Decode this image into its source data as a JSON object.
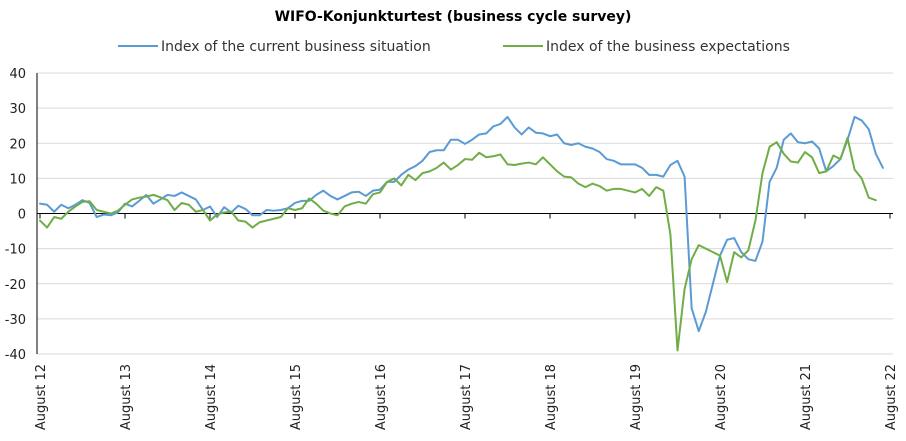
{
  "chart_data": {
    "type": "line",
    "title": "WIFO-Konjunkturtest (business cycle survey)",
    "xlabel": "",
    "ylabel": "",
    "ylim": [
      -40,
      40
    ],
    "yticks": [
      -40,
      -30,
      -20,
      -10,
      0,
      10,
      20,
      30,
      40
    ],
    "legend_position": "top",
    "grid": true,
    "x_tick_labels": [
      "August 12",
      "August 13",
      "August 14",
      "August 15",
      "August 16",
      "August 17",
      "August 18",
      "August 19",
      "August 20",
      "August 21",
      "August 22"
    ],
    "x_start": "2012-08",
    "series": [
      {
        "name": "Index of the current business situation",
        "color": "#5b9bd5",
        "values": [
          2.8,
          2.5,
          0.5,
          2.5,
          1.5,
          2.5,
          3.8,
          3.0,
          -1.0,
          -0.3,
          -0.5,
          0.3,
          2.8,
          2.0,
          3.6,
          5.3,
          2.8,
          4.0,
          5.3,
          5.0,
          6.0,
          5.0,
          4.0,
          1.0,
          2.0,
          -1.0,
          1.8,
          0.3,
          2.2,
          1.3,
          -0.5,
          -0.5,
          1.0,
          0.8,
          1.0,
          1.5,
          3.0,
          3.6,
          3.6,
          5.3,
          6.5,
          5.0,
          4.0,
          5.0,
          6.0,
          6.2,
          5.0,
          6.5,
          6.8,
          9.0,
          9.0,
          11.0,
          12.5,
          13.5,
          15.0,
          17.5,
          18.0,
          18.0,
          21.0,
          21.0,
          19.8,
          21.0,
          22.5,
          22.8,
          24.8,
          25.5,
          27.5,
          24.5,
          22.5,
          24.5,
          23.0,
          22.8,
          22.0,
          22.5,
          20.0,
          19.5,
          20.0,
          19.0,
          18.5,
          17.5,
          15.5,
          15.0,
          14.0,
          14.0,
          14.0,
          13.0,
          11.0,
          11.0,
          10.5,
          13.8,
          15.0,
          10.5,
          -27.0,
          -33.5,
          -28.0,
          -20.0,
          -12.0,
          -7.5,
          -7.0,
          -11.0,
          -13.0,
          -13.5,
          -8.0,
          9.0,
          13.0,
          21.0,
          22.8,
          20.3,
          20.0,
          20.5,
          18.5,
          12.0,
          13.5,
          15.5,
          21.0,
          27.5,
          26.5,
          24.0,
          17.0,
          13.0
        ]
      },
      {
        "name": "Index of the business expectations",
        "color": "#70ad47",
        "values": [
          -2.0,
          -4.0,
          -1.0,
          -1.5,
          0.5,
          2.0,
          3.3,
          3.5,
          1.0,
          0.5,
          0.0,
          0.8,
          2.5,
          4.0,
          4.5,
          4.8,
          5.3,
          4.6,
          3.8,
          1.0,
          3.0,
          2.5,
          0.5,
          1.0,
          -2.0,
          -0.3,
          0.3,
          0.5,
          -2.0,
          -2.3,
          -4.0,
          -2.5,
          -2.0,
          -1.5,
          -1.0,
          1.5,
          1.0,
          1.5,
          4.3,
          2.8,
          0.8,
          0.0,
          -0.5,
          2.0,
          2.8,
          3.3,
          2.8,
          5.5,
          6.0,
          9.0,
          10.0,
          8.0,
          11.0,
          9.5,
          11.5,
          12.0,
          13.0,
          14.5,
          12.5,
          13.8,
          15.5,
          15.3,
          17.3,
          16.0,
          16.3,
          16.8,
          14.0,
          13.8,
          14.2,
          14.5,
          14.0,
          16.0,
          14.0,
          12.0,
          10.5,
          10.3,
          8.5,
          7.5,
          8.5,
          7.8,
          6.5,
          7.0,
          7.0,
          6.5,
          6.0,
          7.0,
          5.0,
          7.5,
          6.5,
          -6.0,
          -39.0,
          -21.5,
          -13.0,
          -9.0,
          -10.0,
          -11.0,
          -12.0,
          -19.5,
          -11.0,
          -12.5,
          -10.5,
          -2.0,
          11.5,
          19.0,
          20.3,
          17.0,
          14.8,
          14.5,
          17.5,
          16.0,
          11.5,
          12.0,
          16.5,
          15.5,
          21.5,
          12.5,
          10.0,
          4.5,
          3.8
        ]
      }
    ]
  }
}
